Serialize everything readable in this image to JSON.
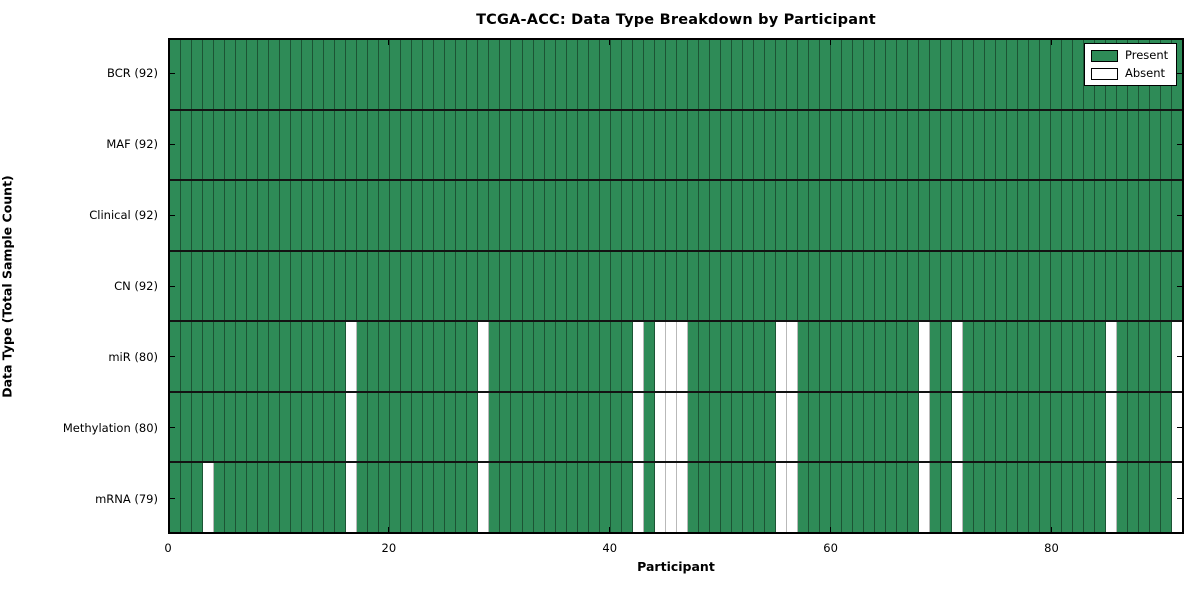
{
  "title": "TCGA-ACC: Data Type Breakdown by Participant",
  "xlabel": "Participant",
  "ylabel": "Data Type (Total Sample Count)",
  "legend": {
    "items": [
      {
        "label": "Present",
        "color": "#2e8b57"
      },
      {
        "label": "Absent",
        "color": "#ffffff"
      }
    ]
  },
  "colors": {
    "present": "#2e8b57",
    "absent": "#ffffff",
    "edge_on_green": "#1c5434",
    "edge_on_white": "#b9b9b9",
    "spine": "#000000"
  },
  "chart_data": {
    "type": "heatmap",
    "title": "TCGA-ACC: Data Type Breakdown by Participant",
    "xlabel": "Participant",
    "ylabel": "Data Type (Total Sample Count)",
    "x_range": [
      0,
      92
    ],
    "x_ticks": [
      0,
      20,
      40,
      60,
      80
    ],
    "n_participants": 92,
    "legend_position": "upper right",
    "grid": false,
    "rows": [
      {
        "label": "BCR (92)",
        "present_count": 92,
        "absent_participants": []
      },
      {
        "label": "MAF (92)",
        "present_count": 92,
        "absent_participants": []
      },
      {
        "label": "Clinical (92)",
        "present_count": 92,
        "absent_participants": []
      },
      {
        "label": "CN (92)",
        "present_count": 92,
        "absent_participants": []
      },
      {
        "label": "miR (80)",
        "present_count": 80,
        "absent_participants": [
          16,
          28,
          42,
          44,
          45,
          46,
          55,
          56,
          68,
          71,
          85,
          91
        ]
      },
      {
        "label": "Methylation (80)",
        "present_count": 80,
        "absent_participants": [
          16,
          28,
          42,
          44,
          45,
          46,
          55,
          56,
          68,
          71,
          85,
          91
        ]
      },
      {
        "label": "mRNA (79)",
        "present_count": 79,
        "absent_participants": [
          3,
          16,
          28,
          42,
          44,
          45,
          46,
          55,
          56,
          68,
          71,
          85,
          91
        ]
      }
    ]
  }
}
